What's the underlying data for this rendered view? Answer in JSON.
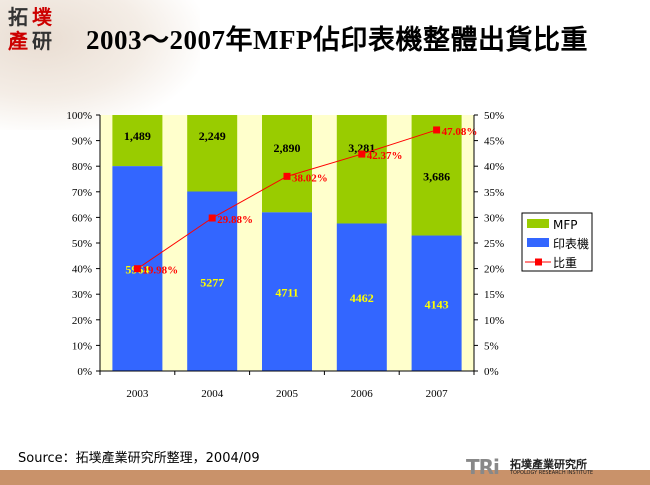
{
  "header": {
    "title": "2003～2007年MFP佔印表機整體出貨比重",
    "logo_text": [
      "拓",
      "墣",
      "產",
      "研"
    ]
  },
  "footer": {
    "source": "Source：拓墣產業研究所整理，2004/09",
    "brand_mark": "TRi",
    "brand_cn": "拓墣產業研究所",
    "brand_en": "TOPOLOGY RESEARCH INSTITUTE"
  },
  "colors": {
    "mfp": "#99CC00",
    "printer": "#3366FF",
    "ratio": "#FF0000",
    "plot_bg": "#FFFFCC"
  },
  "chart_data": {
    "type": "bar",
    "stacked": "percent",
    "title": "",
    "categories": [
      "2003",
      "2004",
      "2005",
      "2006",
      "2007"
    ],
    "series": [
      {
        "name": "印表機",
        "type": "bar",
        "values": [
          5964,
          5277,
          4711,
          4462,
          4143
        ],
        "labels": [
          "5964",
          "5277",
          "4711",
          "4462",
          "4143"
        ]
      },
      {
        "name": "MFP",
        "type": "bar",
        "values": [
          1489,
          2249,
          2890,
          3281,
          3686
        ],
        "labels": [
          "1,489",
          "2,249",
          "2,890",
          "3,281",
          "3,686"
        ]
      },
      {
        "name": "比重",
        "type": "line",
        "axis": "right",
        "values": [
          19.98,
          29.88,
          38.02,
          42.37,
          47.08
        ],
        "labels": [
          "19.98%",
          "29.88%",
          "38.02%",
          "42.37%",
          "47.08%"
        ]
      }
    ],
    "left_axis": {
      "ylim": [
        0,
        100
      ],
      "ticks": [
        "0%",
        "10%",
        "20%",
        "30%",
        "40%",
        "50%",
        "60%",
        "70%",
        "80%",
        "90%",
        "100%"
      ]
    },
    "right_axis": {
      "ylim": [
        0,
        50
      ],
      "ticks": [
        "0%",
        "5%",
        "10%",
        "15%",
        "20%",
        "25%",
        "30%",
        "35%",
        "40%",
        "45%",
        "50%"
      ]
    },
    "legend": {
      "position": "right",
      "entries": [
        "MFP",
        "印表機",
        "比重"
      ]
    },
    "grid": false
  }
}
